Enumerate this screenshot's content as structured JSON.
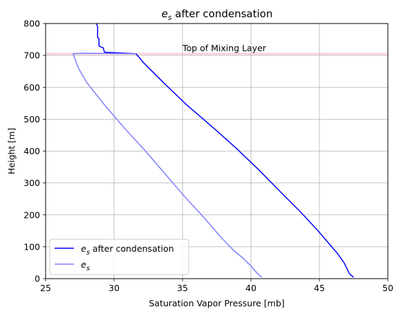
{
  "chart_data": {
    "type": "line",
    "title": {
      "symbol": "e",
      "subscript": "s",
      "rest": " after condensation"
    },
    "xlabel": "Saturation Vapor Pressure [mb]",
    "ylabel": "Height [m]",
    "xlim": [
      25,
      50
    ],
    "ylim": [
      0,
      800
    ],
    "xticks": [
      25,
      30,
      35,
      40,
      45,
      50
    ],
    "yticks": [
      0,
      100,
      200,
      300,
      400,
      500,
      600,
      700,
      800
    ],
    "grid": true,
    "legend_position": "lower-left",
    "annotation": {
      "text": "Top of Mixing Layer",
      "x": 35,
      "y": 705
    },
    "reference_line": {
      "y": 705,
      "color": "#f4b6c2"
    },
    "series": [
      {
        "legend": {
          "symbol": "e",
          "subscript": "s",
          "rest": " after condensation"
        },
        "color": "#0000ff",
        "opacity": 1,
        "points": [
          [
            47.5,
            4
          ],
          [
            47.2,
            15
          ],
          [
            46.8,
            50
          ],
          [
            46.3,
            80
          ],
          [
            45.8,
            105
          ],
          [
            44.9,
            150
          ],
          [
            43.6,
            210
          ],
          [
            42.2,
            270
          ],
          [
            40.6,
            340
          ],
          [
            38.9,
            410
          ],
          [
            37.2,
            475
          ],
          [
            35.3,
            545
          ],
          [
            33.6,
            615
          ],
          [
            32.2,
            675
          ],
          [
            31.6,
            705
          ],
          [
            29.3,
            710
          ],
          [
            29.2,
            724
          ],
          [
            28.9,
            729
          ],
          [
            28.9,
            752
          ],
          [
            28.8,
            756
          ],
          [
            28.8,
            790
          ],
          [
            28.7,
            800
          ]
        ]
      },
      {
        "legend": {
          "symbol": "e",
          "subscript": "s",
          "rest": ""
        },
        "color": "#7f7fff",
        "opacity": 1,
        "points": [
          [
            40.8,
            4
          ],
          [
            40.5,
            15
          ],
          [
            40.0,
            40
          ],
          [
            39.4,
            65
          ],
          [
            38.7,
            90
          ],
          [
            37.8,
            130
          ],
          [
            36.6,
            190
          ],
          [
            35.2,
            255
          ],
          [
            33.8,
            325
          ],
          [
            32.3,
            400
          ],
          [
            30.8,
            470
          ],
          [
            29.3,
            545
          ],
          [
            28.0,
            615
          ],
          [
            27.4,
            660
          ],
          [
            27.0,
            705
          ],
          [
            27.6,
            707
          ],
          [
            31.6,
            705
          ]
        ]
      }
    ]
  }
}
